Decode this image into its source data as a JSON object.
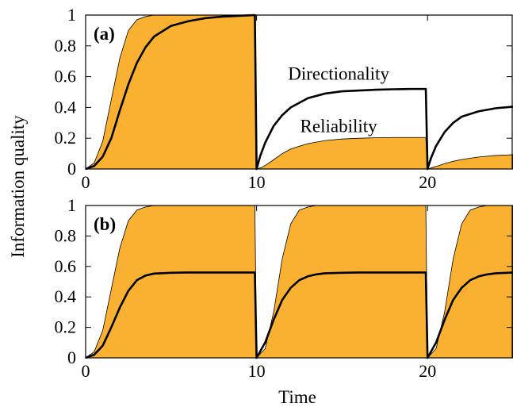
{
  "chart_data": [
    {
      "type": "area",
      "panel_label": "(a)",
      "xlabel": "",
      "ylabel": "Information quality",
      "xlim": [
        0,
        25
      ],
      "ylim": [
        0,
        1
      ],
      "x_ticks": [
        "0",
        "10",
        "20"
      ],
      "y_ticks": [
        "0",
        "0.2",
        "0.4",
        "0.6",
        "0.8",
        "1"
      ],
      "grid": false,
      "annotations": [
        {
          "text": "Directionality",
          "x": 14.8,
          "y": 0.58
        },
        {
          "text": "Reliability",
          "x": 14.8,
          "y": 0.24
        }
      ],
      "series": [
        {
          "name": "Directionality",
          "style": "line",
          "x": [
            0,
            0.5,
            1,
            1.5,
            2,
            2.5,
            3,
            3.5,
            4,
            5,
            6,
            7,
            8,
            9,
            9.9,
            10,
            10.2,
            10.5,
            11,
            11.5,
            12,
            13,
            14,
            15,
            16,
            17,
            18,
            19,
            19.9,
            20,
            20.2,
            20.5,
            21,
            21.5,
            22,
            23,
            24,
            25
          ],
          "y": [
            0,
            0.02,
            0.08,
            0.2,
            0.38,
            0.55,
            0.69,
            0.79,
            0.86,
            0.93,
            0.96,
            0.98,
            0.99,
            0.995,
            1.0,
            0,
            0.08,
            0.17,
            0.28,
            0.35,
            0.4,
            0.46,
            0.49,
            0.505,
            0.51,
            0.515,
            0.518,
            0.52,
            0.52,
            0,
            0.07,
            0.15,
            0.24,
            0.3,
            0.34,
            0.375,
            0.395,
            0.405
          ]
        },
        {
          "name": "Reliability",
          "style": "filled-area",
          "color": "#FAB132",
          "x": [
            0,
            0.5,
            1,
            1.5,
            2,
            2.5,
            3,
            3.5,
            4,
            5,
            6,
            7,
            8,
            9,
            9.9,
            10,
            10.3,
            10.6,
            11,
            11.5,
            12,
            13,
            14,
            15,
            16,
            17,
            18,
            19,
            19.9,
            20,
            20.3,
            20.6,
            21,
            21.5,
            22,
            23,
            24,
            25
          ],
          "y": [
            0,
            0.04,
            0.18,
            0.45,
            0.72,
            0.9,
            0.97,
            0.99,
            1.0,
            1.0,
            1.0,
            1.0,
            1.0,
            1.0,
            1.0,
            0,
            0.01,
            0.03,
            0.06,
            0.1,
            0.13,
            0.165,
            0.185,
            0.195,
            0.2,
            0.203,
            0.205,
            0.205,
            0.205,
            0,
            0.01,
            0.02,
            0.035,
            0.05,
            0.062,
            0.078,
            0.088,
            0.093
          ]
        }
      ]
    },
    {
      "type": "area",
      "panel_label": "(b)",
      "xlabel": "Time",
      "ylabel": "Information quality",
      "xlim": [
        0,
        25
      ],
      "ylim": [
        0,
        1
      ],
      "x_ticks": [
        "0",
        "10",
        "20"
      ],
      "y_ticks": [
        "0",
        "0.2",
        "0.4",
        "0.6",
        "0.8",
        "1"
      ],
      "grid": false,
      "series": [
        {
          "name": "Directionality",
          "style": "line",
          "x": [
            0,
            0.5,
            1,
            1.5,
            2,
            2.5,
            3,
            3.5,
            4,
            5,
            6,
            7,
            8,
            9,
            9.9,
            10,
            10.5,
            11,
            11.5,
            12,
            12.5,
            13,
            13.5,
            14,
            15,
            16,
            17,
            18,
            19,
            19.9,
            20,
            20.5,
            21,
            21.5,
            22,
            22.5,
            23,
            23.5,
            24,
            25
          ],
          "y": [
            0,
            0.02,
            0.08,
            0.2,
            0.33,
            0.44,
            0.51,
            0.54,
            0.553,
            0.558,
            0.56,
            0.56,
            0.56,
            0.56,
            0.56,
            0,
            0.1,
            0.25,
            0.38,
            0.46,
            0.51,
            0.535,
            0.548,
            0.555,
            0.558,
            0.56,
            0.56,
            0.56,
            0.56,
            0.56,
            0,
            0.1,
            0.25,
            0.38,
            0.46,
            0.51,
            0.535,
            0.548,
            0.555,
            0.56
          ]
        },
        {
          "name": "Reliability",
          "style": "filled-area",
          "color": "#FAB132",
          "x": [
            0,
            0.5,
            1,
            1.5,
            2,
            2.5,
            3,
            3.5,
            4,
            5,
            6,
            7,
            8,
            9,
            9.9,
            10,
            10.5,
            11,
            11.5,
            12,
            12.5,
            13,
            13.5,
            14,
            15,
            16,
            17,
            18,
            19,
            19.9,
            20,
            20.5,
            21,
            21.5,
            22,
            22.5,
            23,
            23.5,
            24,
            25
          ],
          "y": [
            0,
            0.04,
            0.18,
            0.45,
            0.72,
            0.9,
            0.97,
            0.99,
            1.0,
            1.0,
            1.0,
            1.0,
            1.0,
            1.0,
            1.0,
            0,
            0.06,
            0.3,
            0.65,
            0.88,
            0.97,
            0.99,
            1.0,
            1.0,
            1.0,
            1.0,
            1.0,
            1.0,
            1.0,
            1.0,
            0,
            0.06,
            0.3,
            0.65,
            0.88,
            0.97,
            0.99,
            1.0,
            1.0,
            1.0
          ]
        }
      ]
    }
  ]
}
